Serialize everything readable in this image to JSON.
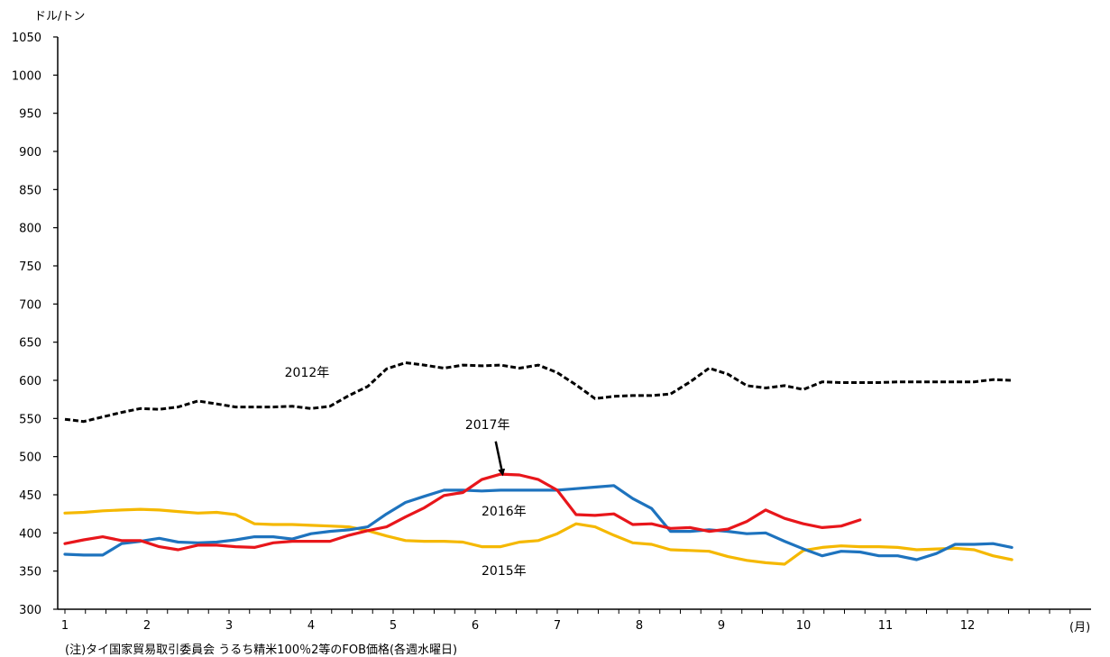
{
  "chart_data": {
    "type": "line",
    "ylabel": "ドル/トン",
    "xlabel": "(月)",
    "ylim": [
      300,
      1050
    ],
    "y_ticks": [
      300,
      350,
      400,
      450,
      500,
      550,
      600,
      650,
      700,
      750,
      800,
      850,
      900,
      950,
      1000,
      1050
    ],
    "x_ticks": [
      1,
      2,
      3,
      4,
      5,
      6,
      7,
      8,
      9,
      10,
      11,
      12
    ],
    "xlim": [
      1,
      13
    ],
    "note": "(注)タイ国家貿易取引委員会 うるち精米100％2等のFOB価格(各週水曜日)",
    "series": [
      {
        "name": "2012年",
        "color": "#000000",
        "dashed": true,
        "x": [
          1.0,
          1.23,
          1.46,
          1.69,
          1.92,
          2.15,
          2.38,
          2.62,
          2.85,
          3.08,
          3.31,
          3.54,
          3.77,
          4.0,
          4.23,
          4.46,
          4.69,
          4.92,
          5.15,
          5.38,
          5.62,
          5.85,
          6.08,
          6.31,
          6.54,
          6.77,
          7.0,
          7.23,
          7.46,
          7.69,
          7.92,
          8.15,
          8.38,
          8.62,
          8.85,
          9.08,
          9.31,
          9.54,
          9.77,
          10.0,
          10.23,
          10.46,
          10.69,
          10.92,
          11.15,
          11.38,
          11.62,
          11.85,
          12.08,
          12.31,
          12.54
        ],
        "values": [
          549,
          546,
          552,
          558,
          563,
          562,
          565,
          573,
          569,
          565,
          565,
          565,
          566,
          563,
          566,
          580,
          592,
          615,
          623,
          620,
          616,
          620,
          619,
          620,
          616,
          620,
          610,
          594,
          576,
          579,
          580,
          580,
          582,
          598,
          616,
          608,
          593,
          590,
          593,
          588,
          598,
          597,
          597,
          597,
          598,
          598,
          598,
          598,
          598,
          601,
          600
        ]
      },
      {
        "name": "2015年",
        "color": "#F5B800",
        "dashed": false,
        "x": [
          1.0,
          1.23,
          1.46,
          1.69,
          1.92,
          2.15,
          2.38,
          2.62,
          2.85,
          3.08,
          3.31,
          3.54,
          3.77,
          4.0,
          4.23,
          4.46,
          4.69,
          4.92,
          5.15,
          5.38,
          5.62,
          5.85,
          6.08,
          6.31,
          6.54,
          6.77,
          7.0,
          7.23,
          7.46,
          7.69,
          7.92,
          8.15,
          8.38,
          8.62,
          8.85,
          9.08,
          9.31,
          9.54,
          9.77,
          10.0,
          10.23,
          10.46,
          10.69,
          10.92,
          11.15,
          11.38,
          11.62,
          11.85,
          12.08,
          12.31,
          12.54
        ],
        "values": [
          426,
          427,
          429,
          430,
          431,
          430,
          428,
          426,
          427,
          424,
          412,
          411,
          411,
          410,
          409,
          408,
          403,
          396,
          390,
          389,
          389,
          388,
          382,
          382,
          388,
          390,
          399,
          412,
          408,
          397,
          387,
          385,
          378,
          377,
          376,
          369,
          364,
          361,
          359,
          377,
          381,
          383,
          382,
          382,
          381,
          378,
          379,
          380,
          378,
          370,
          365
        ]
      },
      {
        "name": "2016年",
        "color": "#1E73BE",
        "dashed": false,
        "x": [
          1.0,
          1.23,
          1.46,
          1.69,
          1.92,
          2.15,
          2.38,
          2.62,
          2.85,
          3.08,
          3.31,
          3.54,
          3.77,
          4.0,
          4.23,
          4.46,
          4.69,
          4.92,
          5.15,
          5.38,
          5.62,
          5.85,
          6.08,
          6.31,
          6.54,
          6.77,
          7.0,
          7.23,
          7.46,
          7.69,
          7.92,
          8.15,
          8.38,
          8.62,
          8.85,
          9.08,
          9.31,
          9.54,
          9.77,
          10.0,
          10.23,
          10.46,
          10.69,
          10.92,
          11.15,
          11.38,
          11.62,
          11.85,
          12.08,
          12.31,
          12.54
        ],
        "values": [
          372,
          371,
          371,
          386,
          389,
          393,
          388,
          387,
          388,
          391,
          395,
          395,
          392,
          399,
          402,
          404,
          408,
          425,
          440,
          448,
          456,
          456,
          455,
          456,
          456,
          456,
          456,
          458,
          460,
          462,
          445,
          432,
          402,
          402,
          404,
          402,
          399,
          400,
          389,
          379,
          370,
          376,
          375,
          370,
          370,
          365,
          373,
          385,
          385,
          386,
          381
        ]
      },
      {
        "name": "2017年",
        "color": "#E8161B",
        "dashed": false,
        "x": [
          1.0,
          1.23,
          1.46,
          1.69,
          1.92,
          2.15,
          2.38,
          2.62,
          2.85,
          3.08,
          3.31,
          3.54,
          3.77,
          4.0,
          4.23,
          4.46,
          4.69,
          4.92,
          5.15,
          5.38,
          5.62,
          5.85,
          6.08,
          6.31,
          6.54,
          6.77,
          7.0,
          7.23,
          7.46,
          7.69,
          7.92,
          8.15,
          8.38,
          8.62,
          8.85,
          9.08,
          9.31,
          9.54,
          9.77,
          10.0,
          10.23,
          10.46,
          10.69
        ],
        "values": [
          386,
          391,
          395,
          390,
          390,
          382,
          378,
          384,
          384,
          382,
          381,
          387,
          389,
          389,
          389,
          397,
          403,
          408,
          421,
          433,
          449,
          453,
          470,
          477,
          476,
          470,
          456,
          424,
          423,
          425,
          411,
          412,
          406,
          407,
          402,
          405,
          415,
          430,
          419,
          412,
          407,
          409,
          417
        ]
      }
    ],
    "annotations": [
      {
        "text": "2012年",
        "x": 3.95,
        "y": 605
      },
      {
        "text": "2017年",
        "x": 6.15,
        "y": 536
      },
      {
        "text": "2016年",
        "x": 6.35,
        "y": 423
      },
      {
        "text": "2015年",
        "x": 6.35,
        "y": 345
      }
    ],
    "arrow": {
      "from": [
        6.25,
        520
      ],
      "to": [
        6.33,
        479
      ]
    }
  }
}
